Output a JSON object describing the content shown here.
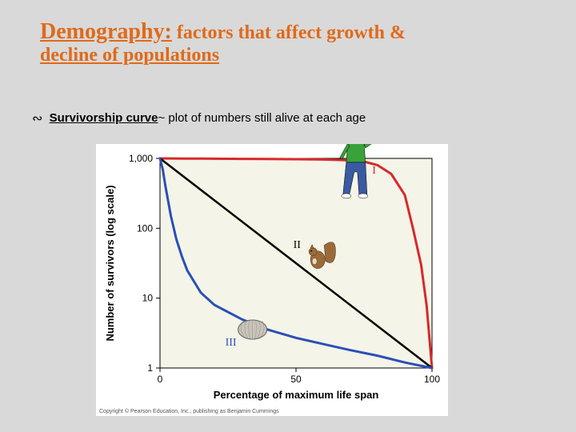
{
  "title": {
    "main": "Demography:",
    "rest": " factors that affect growth &",
    "line2": "decline of populations"
  },
  "bullet": {
    "glyph": "∾",
    "term": "Survivorship curve",
    "definition": "~ plot of numbers still alive at each age"
  },
  "chart": {
    "type": "line",
    "background_color": "#ffffff",
    "plot_background": "#f5f4e8",
    "plot_border_color": "#000000",
    "plot_border_width": 1,
    "xlabel": "Percentage of maximum life span",
    "ylabel": "Number of survivors (log scale)",
    "label_fontsize": 13,
    "label_fontweight": "bold",
    "tick_fontsize": 12,
    "xlim": [
      0,
      100
    ],
    "xticks": [
      0,
      50,
      100
    ],
    "yticks": [
      1,
      10,
      100,
      1000
    ],
    "ytick_labels": [
      "1",
      "10",
      "100",
      "1,000"
    ],
    "series": [
      {
        "name": "I",
        "label": "I",
        "label_color": "#d6292c",
        "color": "#d6292c",
        "line_width": 3,
        "points": [
          [
            0,
            1000
          ],
          [
            10,
            995
          ],
          [
            20,
            990
          ],
          [
            30,
            985
          ],
          [
            40,
            980
          ],
          [
            50,
            975
          ],
          [
            60,
            965
          ],
          [
            70,
            940
          ],
          [
            75,
            900
          ],
          [
            80,
            800
          ],
          [
            85,
            600
          ],
          [
            90,
            300
          ],
          [
            93,
            100
          ],
          [
            96,
            30
          ],
          [
            98,
            8
          ],
          [
            100,
            1
          ]
        ]
      },
      {
        "name": "II",
        "label": "II",
        "label_color": "#000000",
        "color": "#000000",
        "line_width": 2.5,
        "points": [
          [
            0,
            1000
          ],
          [
            100,
            1
          ]
        ]
      },
      {
        "name": "III",
        "label": "III",
        "label_color": "#2a4fb8",
        "color": "#2a4fb8",
        "line_width": 3,
        "points": [
          [
            0,
            1000
          ],
          [
            1,
            700
          ],
          [
            2,
            400
          ],
          [
            4,
            150
          ],
          [
            6,
            70
          ],
          [
            8,
            40
          ],
          [
            10,
            25
          ],
          [
            15,
            12
          ],
          [
            20,
            8
          ],
          [
            30,
            5
          ],
          [
            40,
            3.5
          ],
          [
            50,
            2.7
          ],
          [
            60,
            2.2
          ],
          [
            70,
            1.8
          ],
          [
            80,
            1.5
          ],
          [
            90,
            1.2
          ],
          [
            100,
            1
          ]
        ]
      }
    ],
    "icons": {
      "human": {
        "x": 72,
        "ylog": 2.6,
        "color_shirt": "#3aa23a",
        "color_pants": "#3a5aa2"
      },
      "squirrel": {
        "x": 58,
        "ylog": 1.55,
        "color": "#9b6a3a"
      },
      "shell": {
        "x": 34,
        "ylog": 0.55,
        "color": "#c8c4b8"
      }
    },
    "copyright": "Copyright © Pearson Education, Inc., publishing as Benjamin Cummings"
  }
}
